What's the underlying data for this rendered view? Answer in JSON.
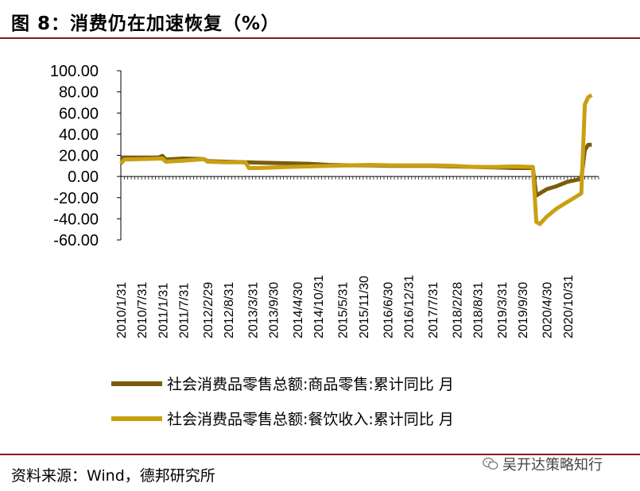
{
  "header": {
    "title": "图 8：消费仍在加速恢复（%）"
  },
  "footer": {
    "source": "资料来源：Wind，德邦研究所",
    "watermark": "吴开达策略知行"
  },
  "colors": {
    "series1": "#7a5c0c",
    "series2": "#c9a012",
    "axis": "#000000",
    "rule": "#8b1a1a"
  },
  "chart_data": {
    "type": "line",
    "title": "消费仍在加速恢复（%）",
    "ylim": [
      -60,
      100
    ],
    "yticks": [
      "100.00",
      "80.00",
      "60.00",
      "40.00",
      "20.00",
      "0.00",
      "-20.00",
      "-40.00",
      "-60.00"
    ],
    "ytick_values": [
      100,
      80,
      60,
      40,
      20,
      0,
      -20,
      -40,
      -60
    ],
    "xlim_months": [
      0,
      138
    ],
    "xticks": [
      "2010/1/31",
      "2010/7/31",
      "2011/1/31",
      "2011/7/31",
      "2012/2/29",
      "2012/8/31",
      "2013/3/31",
      "2013/9/30",
      "2014/4/30",
      "2014/10/31",
      "2015/5/31",
      "2015/11/30",
      "2016/6/30",
      "2016/12/31",
      "2017/7/31",
      "2018/2/28",
      "2018/8/31",
      "2019/3/31",
      "2019/9/30",
      "2020/4/30",
      "2020/10/31"
    ],
    "xtick_months": [
      0,
      6,
      12,
      18,
      25,
      31,
      38,
      44,
      51,
      57,
      64,
      70,
      77,
      83,
      90,
      97,
      103,
      110,
      116,
      123,
      129
    ],
    "legend": [
      "社会消费品零售总额:商品零售:累计同比 月",
      "社会消费品零售总额:餐饮收入:累计同比 月"
    ],
    "series": [
      {
        "name": "社会消费品零售总额:商品零售:累计同比 月",
        "points": [
          [
            0,
            18
          ],
          [
            6,
            18
          ],
          [
            11,
            18
          ],
          [
            12,
            19.5
          ],
          [
            13,
            16
          ],
          [
            18,
            17
          ],
          [
            24,
            16.5
          ],
          [
            25,
            14.5
          ],
          [
            30,
            14
          ],
          [
            36,
            13.5
          ],
          [
            40,
            13
          ],
          [
            48,
            12.5
          ],
          [
            54,
            12
          ],
          [
            60,
            11
          ],
          [
            66,
            10.5
          ],
          [
            72,
            10.5
          ],
          [
            78,
            10
          ],
          [
            84,
            10
          ],
          [
            90,
            10
          ],
          [
            96,
            9.5
          ],
          [
            102,
            9
          ],
          [
            108,
            8.5
          ],
          [
            114,
            8
          ],
          [
            119,
            8
          ],
          [
            120,
            -18
          ],
          [
            123,
            -12
          ],
          [
            126,
            -9
          ],
          [
            129,
            -5
          ],
          [
            132,
            -3
          ],
          [
            133,
            -2
          ],
          [
            134,
            25
          ],
          [
            135,
            30
          ],
          [
            136,
            30
          ]
        ]
      },
      {
        "name": "社会消费品零售总额:餐饮收入:累计同比 月",
        "points": [
          [
            0,
            12
          ],
          [
            1,
            16
          ],
          [
            6,
            16.5
          ],
          [
            12,
            17
          ],
          [
            13,
            14
          ],
          [
            18,
            15
          ],
          [
            24,
            16.5
          ],
          [
            25,
            14
          ],
          [
            30,
            13.5
          ],
          [
            36,
            13.5
          ],
          [
            37,
            8
          ],
          [
            40,
            8
          ],
          [
            48,
            9
          ],
          [
            54,
            9.5
          ],
          [
            60,
            10
          ],
          [
            66,
            10.5
          ],
          [
            72,
            11
          ],
          [
            78,
            10.5
          ],
          [
            84,
            10.5
          ],
          [
            90,
            10.5
          ],
          [
            96,
            10
          ],
          [
            102,
            9
          ],
          [
            108,
            9
          ],
          [
            114,
            9.5
          ],
          [
            119,
            9
          ],
          [
            120,
            -43
          ],
          [
            121,
            -45
          ],
          [
            123,
            -38
          ],
          [
            126,
            -30
          ],
          [
            129,
            -24
          ],
          [
            132,
            -18
          ],
          [
            133,
            -16
          ],
          [
            134,
            68
          ],
          [
            135,
            75
          ],
          [
            136,
            77
          ]
        ]
      }
    ]
  }
}
